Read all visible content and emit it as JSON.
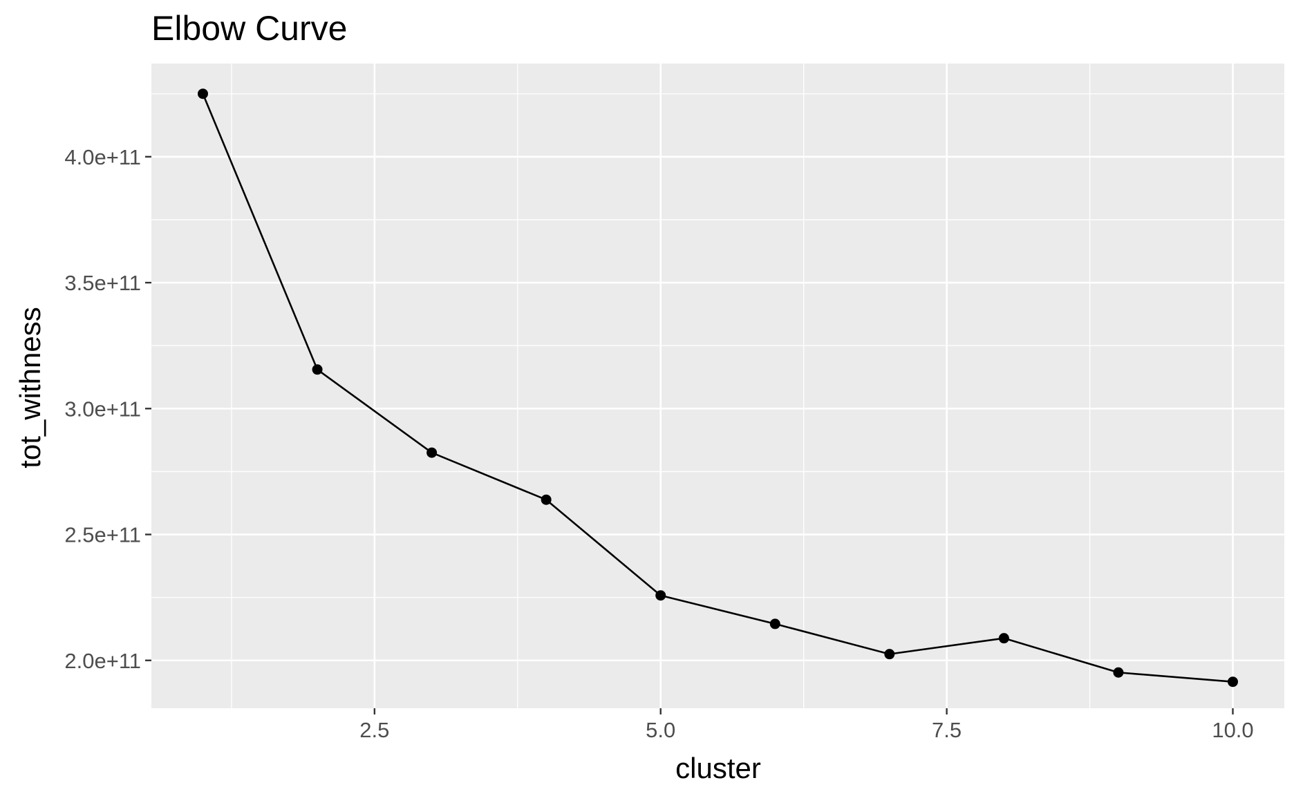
{
  "chart_data": {
    "type": "line",
    "title": "Elbow Curve",
    "xlabel": "cluster",
    "ylabel": "tot_withness",
    "x": [
      1,
      2,
      3,
      4,
      5,
      6,
      7,
      8,
      9,
      10
    ],
    "series": [
      {
        "values": [
          425000000000.0,
          315500000000.0,
          282500000000.0,
          263800000000.0,
          225800000000.0,
          214500000000.0,
          202500000000.0,
          208800000000.0,
          195200000000.0,
          191500000000.0
        ]
      }
    ],
    "xlim": [
      0.55,
      10.45
    ],
    "ylim": [
      181000000000.0,
      437000000000.0
    ],
    "x_ticks": [
      2.5,
      5.0,
      7.5,
      10.0
    ],
    "x_tick_labels": [
      "2.5",
      "5.0",
      "7.5",
      "10.0"
    ],
    "x_minor_ticks": [
      1.25,
      3.75,
      6.25,
      8.75
    ],
    "y_ticks": [
      200000000000.0,
      250000000000.0,
      300000000000.0,
      350000000000.0,
      400000000000.0
    ],
    "y_tick_labels": [
      "2.0e+11",
      "2.5e+11",
      "3.0e+11",
      "3.5e+11",
      "4.0e+11"
    ],
    "y_minor_ticks": [
      225000000000.0,
      275000000000.0,
      325000000000.0,
      375000000000.0,
      425000000000.0
    ],
    "grid": true,
    "legend": "none",
    "colors": {
      "panel_background": "#ebebeb",
      "grid": "#ffffff",
      "line": "#000000",
      "point": "#000000",
      "tick_label": "#4d4d4d",
      "tick_mark": "#333333"
    }
  }
}
